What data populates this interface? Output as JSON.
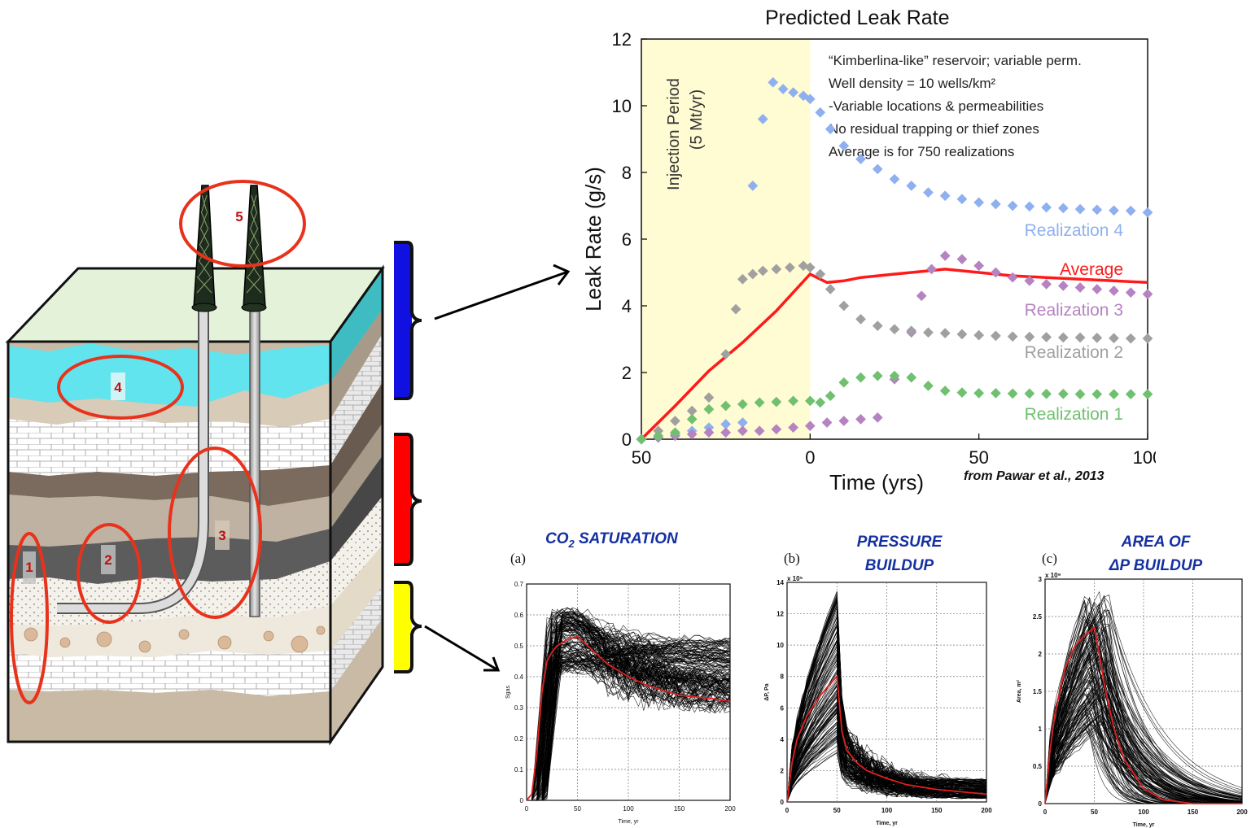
{
  "geology": {
    "markers": [
      "1",
      "2",
      "3",
      "4",
      "5"
    ],
    "colors": {
      "water": "#62e4ee",
      "cap": "#e4f2da",
      "tan": "#d8cbb8",
      "darkbrown": "#7b6b5e",
      "grey": "#5c5c5c",
      "limestone": "#ffffff",
      "ellipse": "#e8321c"
    }
  },
  "brackets": [
    {
      "color": "#1010e0"
    },
    {
      "color": "#ff0000"
    },
    {
      "color": "#ffff00"
    }
  ],
  "main_chart": {
    "title": "Predicted Leak Rate",
    "ylabel": "Leak Rate (g/s)",
    "xlabel": "Time (yrs)",
    "xticks": [
      "50",
      "0",
      "50",
      "100"
    ],
    "yticks": [
      "0",
      "2",
      "4",
      "6",
      "8",
      "10",
      "12"
    ],
    "injection_label_1": "Injection Period",
    "injection_label_2": "(5 Mt/yr)",
    "notes": [
      "“Kimberlina-like” reservoir; variable perm.",
      "Well density = 10 wells/km²",
      "  -Variable locations & permeabilities",
      "No residual trapping or thief zones",
      "Average is for 750 realizations"
    ],
    "citation": "from Pawar et al., 2013",
    "labels": {
      "r4": "Realization 4",
      "avg": "Average",
      "r3": "Realization 3",
      "r2": "Realization 2",
      "r1": "Realization 1"
    }
  },
  "chart_data": [
    {
      "type": "scatter",
      "title": "Predicted Leak Rate",
      "xlabel": "Time (yrs)",
      "ylabel": "Leak Rate (g/s)",
      "xlim": [
        -50,
        100
      ],
      "ylim": [
        0,
        12
      ],
      "shaded_region": [
        -50,
        0
      ],
      "series": [
        {
          "name": "Realization 4",
          "color": "#8fb0f0",
          "x": [
            -50,
            -45,
            -40,
            -35,
            -30,
            -25,
            -20,
            -17,
            -14,
            -11,
            -8,
            -5,
            -2,
            0,
            3,
            6,
            10,
            15,
            20,
            25,
            30,
            35,
            40,
            45,
            50,
            55,
            60,
            65,
            70,
            75,
            80,
            85,
            90,
            95,
            100
          ],
          "y": [
            0,
            0.05,
            0.15,
            0.25,
            0.35,
            0.45,
            0.5,
            7.6,
            9.6,
            10.7,
            10.5,
            10.4,
            10.3,
            10.2,
            9.8,
            9.3,
            8.8,
            8.4,
            8.1,
            7.8,
            7.6,
            7.4,
            7.3,
            7.2,
            7.1,
            7.05,
            7.0,
            6.98,
            6.95,
            6.93,
            6.9,
            6.88,
            6.86,
            6.85,
            6.8
          ]
        },
        {
          "name": "Average",
          "color": "#ff1a1a",
          "x": [
            -50,
            -40,
            -30,
            -20,
            -10,
            0,
            5,
            10,
            15,
            20,
            25,
            30,
            40,
            50,
            60,
            70,
            80,
            90,
            100
          ],
          "y": [
            0,
            1,
            2.05,
            2.9,
            3.85,
            4.95,
            4.7,
            4.75,
            4.85,
            4.9,
            4.95,
            5.0,
            5.1,
            5.0,
            4.9,
            4.85,
            4.8,
            4.75,
            4.7
          ]
        },
        {
          "name": "Realization 3",
          "color": "#b583c2",
          "x": [
            -50,
            -45,
            -40,
            -35,
            -30,
            -25,
            -20,
            -15,
            -10,
            -5,
            0,
            5,
            10,
            15,
            20,
            25,
            30,
            33,
            36,
            40,
            45,
            50,
            55,
            60,
            65,
            70,
            75,
            80,
            85,
            90,
            95,
            100
          ],
          "y": [
            0,
            0.05,
            0.1,
            0.15,
            0.2,
            0.2,
            0.25,
            0.25,
            0.3,
            0.35,
            0.4,
            0.5,
            0.55,
            0.6,
            0.65,
            1.8,
            3.2,
            4.3,
            5.1,
            5.5,
            5.4,
            5.2,
            5.0,
            4.85,
            4.75,
            4.65,
            4.6,
            4.55,
            4.5,
            4.45,
            4.4,
            4.35
          ]
        },
        {
          "name": "Realization 2",
          "color": "#a0a0a0",
          "x": [
            -50,
            -45,
            -40,
            -35,
            -30,
            -25,
            -22,
            -20,
            -17,
            -14,
            -10,
            -6,
            -2,
            0,
            3,
            6,
            10,
            15,
            20,
            25,
            30,
            35,
            40,
            45,
            50,
            55,
            60,
            65,
            70,
            75,
            80,
            85,
            90,
            95,
            100
          ],
          "y": [
            0,
            0.25,
            0.55,
            0.85,
            1.25,
            2.55,
            3.9,
            4.8,
            4.95,
            5.05,
            5.1,
            5.15,
            5.2,
            5.15,
            4.95,
            4.5,
            4.0,
            3.6,
            3.4,
            3.3,
            3.25,
            3.2,
            3.18,
            3.15,
            3.12,
            3.1,
            3.08,
            3.07,
            3.06,
            3.05,
            3.05,
            3.04,
            3.03,
            3.02,
            3.02
          ]
        },
        {
          "name": "Realization 1",
          "color": "#70c070",
          "x": [
            -50,
            -45,
            -40,
            -35,
            -30,
            -25,
            -20,
            -15,
            -10,
            -5,
            0,
            3,
            6,
            10,
            15,
            20,
            25,
            30,
            35,
            40,
            45,
            50,
            55,
            60,
            65,
            70,
            75,
            80,
            85,
            90,
            95,
            100
          ],
          "y": [
            0,
            0.1,
            0.2,
            0.6,
            0.9,
            1.0,
            1.05,
            1.1,
            1.12,
            1.15,
            1.15,
            1.1,
            1.3,
            1.7,
            1.85,
            1.9,
            1.9,
            1.85,
            1.6,
            1.45,
            1.4,
            1.38,
            1.38,
            1.37,
            1.37,
            1.36,
            1.36,
            1.35,
            1.35,
            1.35,
            1.35,
            1.35
          ]
        }
      ]
    },
    {
      "type": "line",
      "panel": "(a)",
      "title": "CO2 SATURATION",
      "xlabel": "Time, yr",
      "ylabel": "Sgas",
      "xlim": [
        0,
        200
      ],
      "ylim": [
        0,
        0.7
      ],
      "xticks": [
        "0",
        "50",
        "100",
        "150",
        "200"
      ],
      "yticks": [
        "0",
        "0.1",
        "0.2",
        "0.3",
        "0.4",
        "0.5",
        "0.6",
        "0.7"
      ],
      "mean": {
        "x": [
          0,
          5,
          10,
          15,
          20,
          25,
          30,
          40,
          50,
          60,
          80,
          100,
          120,
          150,
          180,
          200
        ],
        "y": [
          0,
          0.02,
          0.15,
          0.35,
          0.45,
          0.48,
          0.5,
          0.52,
          0.53,
          0.5,
          0.44,
          0.4,
          0.37,
          0.34,
          0.33,
          0.32
        ]
      }
    },
    {
      "type": "line",
      "panel": "(b)",
      "title": "PRESSURE BUILDUP",
      "xlabel": "Time, yr",
      "ylabel": "ΔP, Pa",
      "xlim": [
        0,
        200
      ],
      "ylim": [
        0,
        14
      ],
      "xticks": [
        "0",
        "50",
        "100",
        "150",
        "200"
      ],
      "yticks": [
        "0",
        "2",
        "4",
        "6",
        "8",
        "10",
        "12",
        "14"
      ],
      "exponent": "x 10⁵",
      "mean": {
        "x": [
          0,
          5,
          10,
          20,
          30,
          40,
          50,
          55,
          60,
          70,
          80,
          100,
          120,
          150,
          200
        ],
        "y": [
          0,
          2.5,
          4,
          5.5,
          6.5,
          7.3,
          8,
          4.5,
          3.3,
          2.5,
          2,
          1.5,
          1.1,
          0.8,
          0.5
        ]
      }
    },
    {
      "type": "line",
      "panel": "(c)",
      "title": "AREA OF ΔP BUILDUP",
      "xlabel": "Time, yr",
      "ylabel": "Area, m²",
      "xlim": [
        0,
        200
      ],
      "ylim": [
        0,
        3
      ],
      "xticks": [
        "0",
        "50",
        "100",
        "150",
        "200"
      ],
      "yticks": [
        "0",
        "0.5",
        "1",
        "1.5",
        "2",
        "2.5",
        "3"
      ],
      "exponent": "x 10⁹",
      "mean": {
        "x": [
          0,
          5,
          10,
          20,
          30,
          40,
          50,
          55,
          60,
          70,
          80,
          100,
          120,
          150,
          200
        ],
        "y": [
          0,
          0.7,
          1.2,
          1.8,
          2.1,
          2.25,
          2.35,
          2.0,
          1.6,
          1.0,
          0.6,
          0.2,
          0.05,
          0,
          0
        ]
      }
    }
  ],
  "small_charts": {
    "a": {
      "panel": "(a)",
      "title_1": "CO",
      "title_sub": "2",
      "title_2": " SATURATION",
      "ylabel": "Sgas",
      "xlabel": "Time, yr"
    },
    "b": {
      "panel": "(b)",
      "title_1": "PRESSURE",
      "title_2": "BUILDUP",
      "ylabel": "ΔP, Pa",
      "xlabel": "Time, yr",
      "exponent": "x 10⁵"
    },
    "c": {
      "panel": "(c)",
      "title_1": "AREA OF",
      "title_2": "ΔP BUILDUP",
      "ylabel": "Area, m²",
      "xlabel": "Time, yr",
      "exponent": "x 10⁹"
    }
  }
}
